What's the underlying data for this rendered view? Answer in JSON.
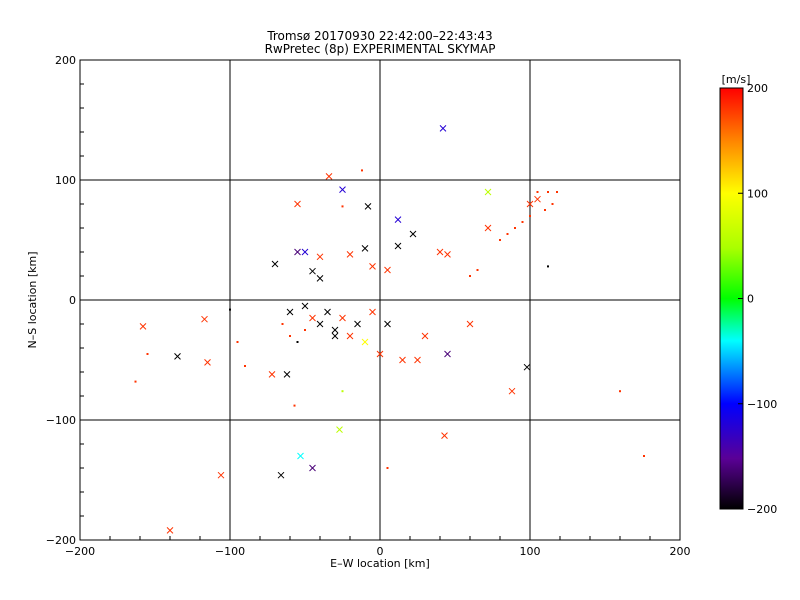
{
  "title_line1": "Tromsø 20170930 22:42:00–22:43:43",
  "title_line2": "RwPretec (8p) EXPERIMENTAL SKYMAP",
  "chart_data": {
    "type": "scatter",
    "xlabel": "E–W location [km]",
    "ylabel": "N–S location [km]",
    "xlim": [
      -200,
      200
    ],
    "ylim": [
      -200,
      200
    ],
    "xticks": [
      "−200",
      "−100",
      "0",
      "100",
      "200"
    ],
    "yticks": [
      "−200",
      "−100",
      "0",
      "100",
      "200"
    ],
    "grid": "lines at ±100 and 0",
    "colorbar": {
      "label": "[m/s]",
      "range": [
        -200,
        200
      ],
      "ticks": [
        "200",
        "100",
        "0",
        "−100",
        "−200"
      ],
      "colormap": "black-purple-blue-cyan-green-yellow-orange-red"
    },
    "series": [
      {
        "marker": "x",
        "points": [
          [
            42,
            143,
            -120
          ],
          [
            -34,
            103,
            180
          ],
          [
            -25,
            92,
            -120
          ],
          [
            -55,
            80,
            180
          ],
          [
            -8,
            78,
            -200
          ],
          [
            12,
            67,
            -120
          ],
          [
            72,
            90,
            60
          ],
          [
            -50,
            40,
            -120
          ],
          [
            -55,
            40,
            -160
          ],
          [
            -40,
            36,
            180
          ],
          [
            -20,
            38,
            180
          ],
          [
            -10,
            43,
            -200
          ],
          [
            22,
            55,
            -200
          ],
          [
            12,
            45,
            -200
          ],
          [
            -70,
            30,
            -200
          ],
          [
            -45,
            24,
            -200
          ],
          [
            -40,
            18,
            -200
          ],
          [
            -5,
            28,
            180
          ],
          [
            5,
            25,
            180
          ],
          [
            40,
            40,
            180
          ],
          [
            45,
            38,
            180
          ],
          [
            -60,
            -10,
            -200
          ],
          [
            -50,
            -5,
            -200
          ],
          [
            -45,
            -15,
            180
          ],
          [
            -40,
            -20,
            -200
          ],
          [
            -35,
            -10,
            -200
          ],
          [
            -30,
            -25,
            -200
          ],
          [
            -25,
            -15,
            180
          ],
          [
            -15,
            -20,
            -200
          ],
          [
            -5,
            -10,
            180
          ],
          [
            5,
            -20,
            -200
          ],
          [
            0,
            -45,
            180
          ],
          [
            15,
            -50,
            180
          ],
          [
            25,
            -50,
            180
          ],
          [
            -158,
            -22,
            180
          ],
          [
            -117,
            -16,
            180
          ],
          [
            -115,
            -52,
            180
          ],
          [
            -135,
            -47,
            -200
          ],
          [
            -72,
            -62,
            180
          ],
          [
            -62,
            -62,
            -200
          ],
          [
            -27,
            -108,
            60
          ],
          [
            -53,
            -130,
            -40
          ],
          [
            -45,
            -140,
            -160
          ],
          [
            -66,
            -146,
            -200
          ],
          [
            -106,
            -146,
            180
          ],
          [
            -140,
            -192,
            180
          ],
          [
            88,
            -76,
            180
          ],
          [
            98,
            -56,
            -200
          ],
          [
            43,
            -113,
            180
          ],
          [
            45,
            -45,
            -160
          ],
          [
            72,
            60,
            180
          ],
          [
            100,
            80,
            180
          ],
          [
            105,
            84,
            180
          ],
          [
            -30,
            -30,
            -200
          ],
          [
            -20,
            -30,
            180
          ],
          [
            -10,
            -35,
            100
          ],
          [
            30,
            -30,
            180
          ],
          [
            60,
            -20,
            180
          ]
        ]
      },
      {
        "marker": "dot",
        "points": [
          [
            -12,
            108,
            180
          ],
          [
            -25,
            78,
            180
          ],
          [
            -100,
            -8,
            -200
          ],
          [
            -95,
            -35,
            180
          ],
          [
            -90,
            -55,
            180
          ],
          [
            -163,
            -68,
            180
          ],
          [
            -155,
            -45,
            180
          ],
          [
            -57,
            -88,
            180
          ],
          [
            -25,
            -76,
            60
          ],
          [
            5,
            -140,
            180
          ],
          [
            160,
            -76,
            180
          ],
          [
            176,
            -130,
            180
          ],
          [
            112,
            28,
            -200
          ],
          [
            112,
            90,
            180
          ],
          [
            118,
            90,
            180
          ],
          [
            -65,
            -20,
            180
          ],
          [
            -60,
            -30,
            180
          ],
          [
            -55,
            -35,
            -200
          ],
          [
            -50,
            -25,
            180
          ],
          [
            60,
            20,
            180
          ],
          [
            65,
            25,
            180
          ],
          [
            80,
            50,
            180
          ],
          [
            85,
            55,
            180
          ],
          [
            90,
            60,
            180
          ],
          [
            95,
            65,
            180
          ],
          [
            100,
            70,
            180
          ],
          [
            110,
            75,
            180
          ],
          [
            115,
            80,
            180
          ],
          [
            105,
            90,
            180
          ]
        ]
      }
    ]
  }
}
